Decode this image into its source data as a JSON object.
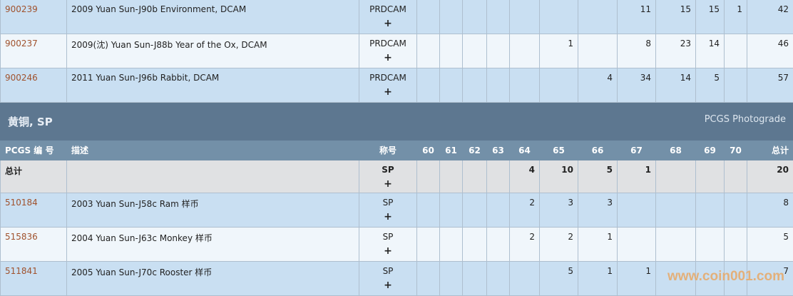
{
  "grade_columns": [
    "60",
    "61",
    "62",
    "63",
    "64",
    "65",
    "66",
    "67",
    "68",
    "69",
    "70"
  ],
  "top_rows": [
    {
      "pcgs": "900239",
      "desc": "2009 Yuan Sun-J90b Environment, DCAM",
      "grade": "PRDCAM",
      "plus": "+",
      "counts": [
        "",
        "",
        "",
        "",
        "",
        "",
        "",
        "11",
        "15",
        "15",
        "1"
      ],
      "total": "42"
    },
    {
      "pcgs": "900237",
      "desc": "2009(沈) Yuan Sun-J88b Year of the Ox, DCAM",
      "grade": "PRDCAM",
      "plus": "+",
      "counts": [
        "",
        "",
        "",
        "",
        "",
        "1",
        "",
        "8",
        "23",
        "14",
        ""
      ],
      "total": "46"
    },
    {
      "pcgs": "900246",
      "desc": "2011 Yuan Sun-J96b Rabbit, DCAM",
      "grade": "PRDCAM",
      "plus": "+",
      "counts": [
        "",
        "",
        "",
        "",
        "",
        "",
        "4",
        "34",
        "14",
        "5",
        ""
      ],
      "total": "57"
    }
  ],
  "section": {
    "title": "黄铜, SP",
    "right": "PCGS Photograde"
  },
  "header": {
    "pcgs": "PCGS 编 号",
    "desc": "描述",
    "grade": "称号",
    "total": "总计"
  },
  "total_row": {
    "label": "总计",
    "grade": "SP",
    "plus": "+",
    "counts": [
      "",
      "",
      "",
      "",
      "4",
      "10",
      "5",
      "1",
      "",
      "",
      ""
    ],
    "total": "20"
  },
  "bottom_rows": [
    {
      "pcgs": "510184",
      "desc": "2003 Yuan Sun-J58c Ram 样币",
      "grade": "SP",
      "plus": "+",
      "counts": [
        "",
        "",
        "",
        "",
        "2",
        "3",
        "3",
        "",
        "",
        "",
        ""
      ],
      "total": "8"
    },
    {
      "pcgs": "515836",
      "desc": "2004 Yuan Sun-J63c Monkey 样币",
      "grade": "SP",
      "plus": "+",
      "counts": [
        "",
        "",
        "",
        "",
        "2",
        "2",
        "1",
        "",
        "",
        "",
        ""
      ],
      "total": "5"
    },
    {
      "pcgs": "511841",
      "desc": "2005 Yuan Sun-J70c Rooster 样币",
      "grade": "SP",
      "plus": "+",
      "counts": [
        "",
        "",
        "",
        "",
        "",
        "5",
        "1",
        "1",
        "",
        "",
        ""
      ],
      "total": "7"
    }
  ],
  "watermark": "www.coin001.com",
  "colors": {
    "link": "#a0522d",
    "section_bg": "#5d7790",
    "header_bg": "#7390a8",
    "row_a": "#c9dff2",
    "row_b": "#f0f6fb",
    "total_bg": "#e0e1e3"
  }
}
